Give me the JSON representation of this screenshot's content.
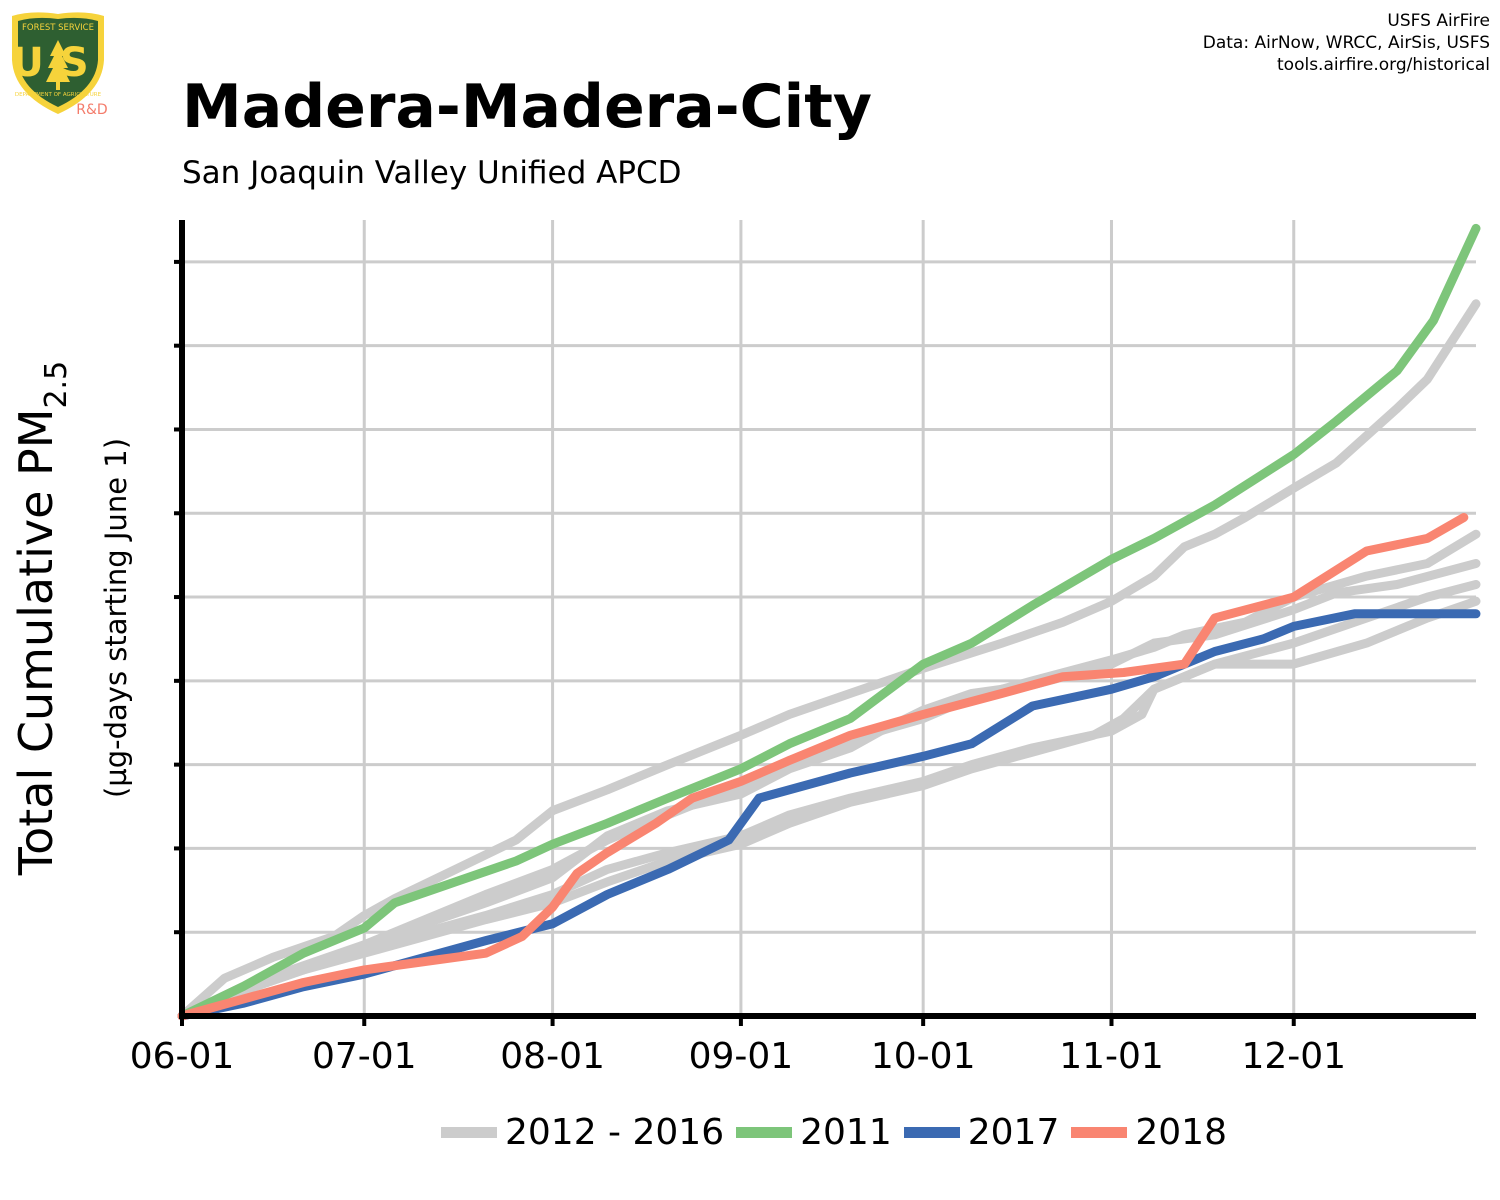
{
  "header": {
    "title": "Madera-Madera-City",
    "subtitle": "San Joaquin Valley Unified APCD",
    "credits": [
      "USFS AirFire",
      "Data: AirNow, WRCC, AirSis, USFS",
      "tools.airfire.org/historical"
    ]
  },
  "logo": {
    "name": "usfs-shield-logo",
    "text_top": "FOREST SERVICE",
    "text_main": "US",
    "text_bottom": "DEPARTMENT OF AGRICULTURE",
    "tag": "R&D",
    "colors": {
      "shield": "#2E5F31",
      "trim": "#F6D33B",
      "tag": "#F47C6B"
    }
  },
  "chart_data": {
    "type": "line",
    "title": "Madera-Madera-City",
    "subtitle": "San Joaquin Valley Unified APCD",
    "xlabel": "",
    "ylabel": "Total Cumulative PM2.5",
    "ylabel_main": "Total Cumulative PM",
    "ylabel_sub": "2.5",
    "ylabel_secondary": "(µg-days starting June 1)",
    "x_ticks": [
      "06-01",
      "07-01",
      "08-01",
      "09-01",
      "10-01",
      "11-01",
      "12-01"
    ],
    "x_tick_days": [
      0,
      30,
      61,
      92,
      122,
      153,
      183
    ],
    "xlim_days": [
      0,
      213
    ],
    "ylim": [
      0,
      9.5
    ],
    "y_tick_values": [
      1,
      2,
      3,
      4,
      5,
      6,
      7,
      8,
      9
    ],
    "y_tick_labels_shown": false,
    "grid": true,
    "legend_position": "bottom",
    "legend": [
      {
        "label": "2012 - 2016",
        "color": "#CCCCCC"
      },
      {
        "label": "2011",
        "color": "#7DC57A"
      },
      {
        "label": "2017",
        "color": "#3B6AB2"
      },
      {
        "label": "2018",
        "color": "#F98571"
      }
    ],
    "series": [
      {
        "legend_group": "2012 - 2016",
        "color": "#CCCCCC",
        "x": [
          0,
          7,
          15,
          25,
          30,
          35,
          45,
          55,
          61,
          70,
          80,
          92,
          100,
          110,
          122,
          135,
          145,
          153,
          160,
          165,
          170,
          175,
          183,
          190,
          200,
          205,
          213
        ],
        "y": [
          0,
          0.45,
          0.7,
          0.95,
          1.2,
          1.4,
          1.75,
          2.1,
          2.45,
          2.7,
          3.0,
          3.35,
          3.6,
          3.85,
          4.15,
          4.45,
          4.7,
          4.95,
          5.25,
          5.6,
          5.75,
          5.95,
          6.3,
          6.6,
          7.25,
          7.6,
          8.5
        ]
      },
      {
        "legend_group": "2012 - 2016",
        "color": "#CCCCCC",
        "x": [
          0,
          10,
          20,
          30,
          40,
          50,
          61,
          70,
          80,
          92,
          100,
          110,
          122,
          130,
          140,
          153,
          160,
          165,
          175,
          183,
          195,
          205,
          213
        ],
        "y": [
          0,
          0.35,
          0.6,
          0.85,
          1.15,
          1.45,
          1.75,
          2.1,
          2.4,
          2.75,
          3.05,
          3.3,
          3.55,
          3.8,
          4.0,
          4.25,
          4.4,
          4.55,
          4.7,
          5.0,
          5.25,
          5.4,
          5.75
        ]
      },
      {
        "legend_group": "2012 - 2016",
        "color": "#CCCCCC",
        "x": [
          0,
          10,
          20,
          30,
          40,
          50,
          61,
          70,
          80,
          92,
          100,
          110,
          115,
          122,
          130,
          140,
          153,
          160,
          170,
          183,
          190,
          200,
          213
        ],
        "y": [
          0,
          0.3,
          0.55,
          0.85,
          1.1,
          1.35,
          1.65,
          2.15,
          2.45,
          2.65,
          2.95,
          3.2,
          3.4,
          3.65,
          3.85,
          3.95,
          4.2,
          4.45,
          4.55,
          4.85,
          5.05,
          5.15,
          5.4
        ]
      },
      {
        "legend_group": "2012 - 2016",
        "color": "#CCCCCC",
        "x": [
          0,
          10,
          20,
          30,
          40,
          50,
          61,
          70,
          80,
          92,
          100,
          110,
          122,
          130,
          140,
          153,
          158,
          160,
          170,
          183,
          195,
          205,
          213
        ],
        "y": [
          0,
          0.3,
          0.55,
          0.8,
          1.0,
          1.2,
          1.45,
          1.75,
          1.95,
          2.15,
          2.4,
          2.6,
          2.8,
          3.0,
          3.2,
          3.4,
          3.6,
          3.9,
          4.2,
          4.45,
          4.75,
          5.0,
          5.15
        ]
      },
      {
        "legend_group": "2012 - 2016",
        "color": "#CCCCCC",
        "x": [
          0,
          10,
          20,
          30,
          40,
          50,
          61,
          70,
          80,
          92,
          100,
          110,
          122,
          130,
          140,
          150,
          155,
          160,
          170,
          183,
          195,
          205,
          213
        ],
        "y": [
          0,
          0.35,
          0.55,
          0.75,
          0.95,
          1.15,
          1.35,
          1.6,
          1.85,
          2.05,
          2.3,
          2.55,
          2.75,
          2.95,
          3.15,
          3.35,
          3.55,
          3.9,
          4.2,
          4.2,
          4.45,
          4.75,
          4.95
        ]
      },
      {
        "legend_group": "2011",
        "name": "2011",
        "color": "#7DC57A",
        "x": [
          0,
          10,
          20,
          30,
          35,
          45,
          55,
          61,
          70,
          80,
          92,
          100,
          110,
          122,
          130,
          140,
          153,
          160,
          170,
          183,
          190,
          200,
          206,
          213
        ],
        "y": [
          0,
          0.35,
          0.75,
          1.05,
          1.35,
          1.6,
          1.85,
          2.05,
          2.3,
          2.6,
          2.95,
          3.25,
          3.55,
          4.2,
          4.45,
          4.9,
          5.45,
          5.7,
          6.1,
          6.7,
          7.1,
          7.7,
          8.3,
          9.4
        ]
      },
      {
        "legend_group": "2017",
        "name": "2017",
        "color": "#3B6AB2",
        "x": [
          0,
          10,
          20,
          30,
          40,
          50,
          61,
          70,
          80,
          90,
          95,
          110,
          122,
          130,
          140,
          153,
          160,
          170,
          178,
          183,
          193,
          200,
          213
        ],
        "y": [
          0,
          0.15,
          0.35,
          0.5,
          0.7,
          0.9,
          1.1,
          1.45,
          1.75,
          2.1,
          2.6,
          2.9,
          3.1,
          3.25,
          3.7,
          3.9,
          4.05,
          4.35,
          4.5,
          4.65,
          4.8,
          4.8,
          4.8
        ]
      },
      {
        "legend_group": "2018",
        "name": "2018",
        "color": "#F98571",
        "x": [
          0,
          10,
          20,
          30,
          40,
          50,
          56,
          61,
          65,
          70,
          78,
          84,
          92,
          100,
          110,
          122,
          135,
          145,
          155,
          165,
          170,
          183,
          195,
          205,
          211
        ],
        "y": [
          0,
          0.2,
          0.4,
          0.55,
          0.65,
          0.75,
          0.95,
          1.3,
          1.7,
          1.95,
          2.3,
          2.6,
          2.8,
          3.05,
          3.35,
          3.6,
          3.85,
          4.05,
          4.1,
          4.2,
          4.75,
          5.0,
          5.55,
          5.7,
          5.95
        ]
      }
    ]
  }
}
